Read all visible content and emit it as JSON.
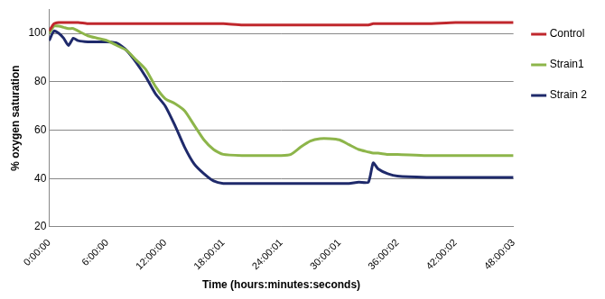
{
  "chart_data": {
    "type": "line",
    "x_label": "Time (hours:minutes:seconds)",
    "y_label": "% oxygen saturation",
    "x": [
      0,
      0.5,
      1,
      1.5,
      2,
      2.5,
      3,
      4,
      5,
      6,
      7,
      8,
      9,
      10,
      11,
      12,
      13,
      14,
      15,
      16,
      17,
      18,
      20,
      22,
      24,
      25,
      26,
      27,
      28,
      29,
      30,
      31,
      32,
      33,
      33.5,
      34,
      35,
      36,
      39,
      42,
      45,
      48
    ],
    "series": [
      {
        "name": "Control",
        "color": "#c0272d",
        "values": [
          101,
          104,
          104.5,
          104.5,
          104.5,
          104.5,
          104.5,
          104,
          104,
          104,
          104,
          104,
          104,
          104,
          104,
          104,
          104,
          104,
          104,
          104,
          104,
          104,
          103.5,
          103.5,
          103.5,
          103.5,
          103.5,
          103.5,
          103.5,
          103.5,
          103.5,
          103.5,
          103.5,
          103.5,
          104,
          104,
          104,
          104,
          104,
          104.5,
          104.5,
          104.5
        ]
      },
      {
        "name": "Strain1",
        "color": "#8db54a",
        "values": [
          100,
          103,
          103,
          102.5,
          102,
          102,
          101,
          99,
          98,
          97,
          95,
          93,
          89,
          85,
          78,
          73,
          71,
          68,
          62,
          56,
          52,
          50,
          49.5,
          49.5,
          49.5,
          50,
          53,
          55.5,
          56.5,
          56.5,
          56,
          54,
          52,
          51,
          50.5,
          50.5,
          50,
          50,
          49.5,
          49.5,
          49.5,
          49.5
        ]
      },
      {
        "name": "Strain 2",
        "color": "#1f2a6b",
        "values": [
          97,
          101,
          100,
          98,
          95,
          98,
          97,
          96.5,
          96.5,
          96.5,
          96,
          93,
          88,
          82,
          75,
          70,
          62,
          53,
          46,
          42,
          39,
          38,
          38,
          38,
          38,
          38,
          38,
          38,
          38,
          38,
          38,
          38,
          38.5,
          38.5,
          46.5,
          44,
          42,
          41,
          40.5,
          40.5,
          40.5,
          40.5
        ]
      }
    ],
    "xlim": [
      0,
      48
    ],
    "xticks": [
      {
        "value": 0,
        "label": "0:00:00"
      },
      {
        "value": 6,
        "label": "6:00:00"
      },
      {
        "value": 12,
        "label": "12:00:00"
      },
      {
        "value": 18,
        "label": "18:00:01"
      },
      {
        "value": 24,
        "label": "24:00:01"
      },
      {
        "value": 30,
        "label": "30:00:01"
      },
      {
        "value": 36,
        "label": "36:00:02"
      },
      {
        "value": 42,
        "label": "42:00:02"
      },
      {
        "value": 48,
        "label": "48:00:03"
      }
    ],
    "ylim": [
      20,
      110
    ],
    "yticks": [
      20,
      40,
      60,
      80,
      100
    ],
    "grid": true,
    "legend": "right"
  }
}
